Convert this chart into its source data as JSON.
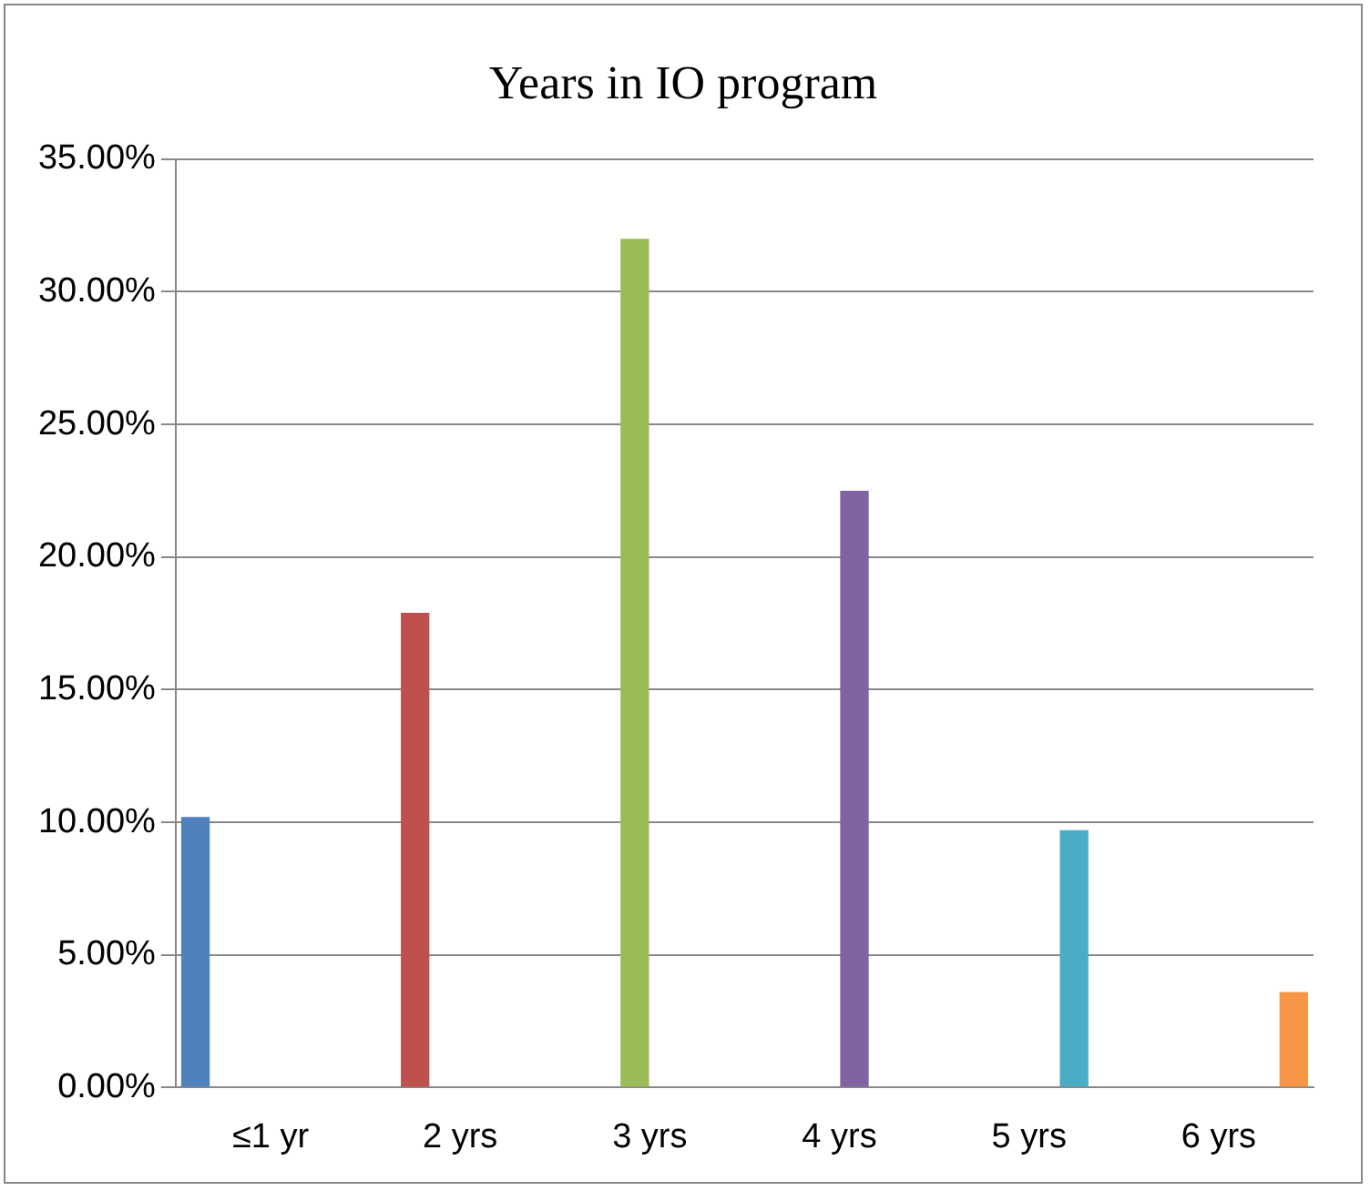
{
  "chart_data": {
    "type": "bar",
    "title": "Years in IO program",
    "categories": [
      "≤1 yr",
      "2 yrs",
      "3 yrs",
      "4 yrs",
      "5 yrs",
      "6 yrs"
    ],
    "series": [
      {
        "color": "#4f81bd",
        "values": [
          10.2,
          null,
          null,
          null,
          null,
          null
        ]
      },
      {
        "color": "#c0504d",
        "values": [
          null,
          17.9,
          null,
          null,
          null,
          null
        ]
      },
      {
        "color": "#9bbb59",
        "values": [
          null,
          null,
          32.0,
          null,
          null,
          null
        ]
      },
      {
        "color": "#8064a2",
        "values": [
          null,
          null,
          null,
          22.5,
          null,
          null
        ]
      },
      {
        "color": "#4bacc6",
        "values": [
          null,
          null,
          null,
          null,
          9.7,
          null
        ]
      },
      {
        "color": "#f79646",
        "values": [
          null,
          null,
          null,
          null,
          null,
          3.6
        ]
      }
    ],
    "ylim": [
      0,
      35
    ],
    "yticks": [
      {
        "value": 0,
        "label": "0.00%"
      },
      {
        "value": 5,
        "label": "5.00%"
      },
      {
        "value": 10,
        "label": "10.00%"
      },
      {
        "value": 15,
        "label": "15.00%"
      },
      {
        "value": 20,
        "label": "20.00%"
      },
      {
        "value": 25,
        "label": "25.00%"
      },
      {
        "value": 30,
        "label": "30.00%"
      },
      {
        "value": 35,
        "label": "35.00%"
      }
    ],
    "grid": "y",
    "legend": false
  }
}
